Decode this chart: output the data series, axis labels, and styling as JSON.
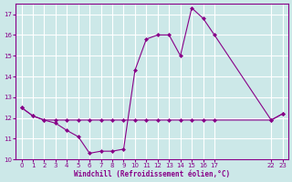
{
  "xlabel": "Windchill (Refroidissement éolien,°C)",
  "bg_color": "#cce8e8",
  "grid_color": "#ffffff",
  "line_color": "#880088",
  "ylim": [
    10,
    17.5
  ],
  "yticks": [
    10,
    11,
    12,
    13,
    14,
    15,
    16,
    17
  ],
  "xticks": [
    0,
    1,
    2,
    3,
    4,
    5,
    6,
    7,
    8,
    9,
    10,
    11,
    12,
    13,
    14,
    15,
    16,
    17,
    22,
    23
  ],
  "xlim": [
    -0.5,
    23.5
  ],
  "series1_x": [
    0,
    1,
    2,
    3,
    4,
    5,
    6,
    7,
    8,
    9,
    10,
    11,
    12,
    13,
    14,
    15,
    16,
    17,
    22,
    23
  ],
  "series1_y": [
    12.5,
    12.1,
    11.9,
    11.75,
    11.4,
    11.1,
    10.3,
    10.4,
    10.4,
    10.5,
    14.3,
    15.8,
    16.0,
    16.0,
    15.0,
    17.3,
    16.8,
    16.0,
    11.9,
    12.2
  ],
  "series2_x": [
    0,
    1,
    2,
    3,
    4,
    5,
    6,
    7,
    8,
    9,
    10,
    11,
    12,
    13,
    14,
    15,
    16,
    17,
    22,
    23
  ],
  "series2_y": [
    12.5,
    12.1,
    11.9,
    11.9,
    11.9,
    11.9,
    11.9,
    11.9,
    11.9,
    11.9,
    11.9,
    11.9,
    11.9,
    11.9,
    11.9,
    11.9,
    11.9,
    11.9,
    11.9,
    12.2
  ],
  "marker_size": 2.5,
  "line_width": 0.8
}
